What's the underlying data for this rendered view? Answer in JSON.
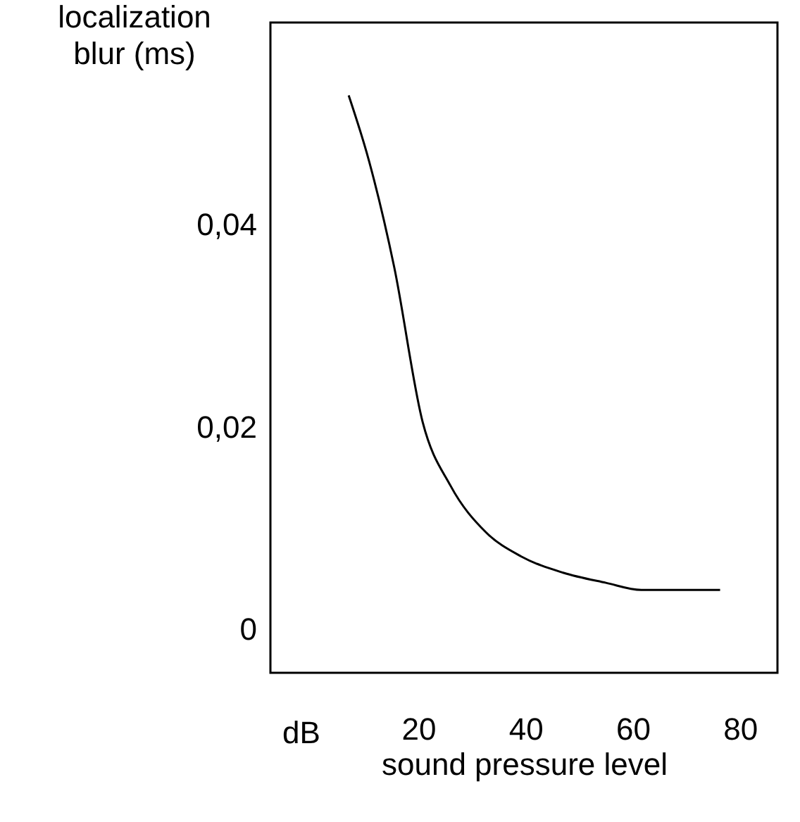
{
  "chart_data": {
    "type": "line",
    "xlabel": "sound pressure level",
    "ylabel": "localization\nblur (ms)",
    "xlim": [
      -7.6,
      87
    ],
    "ylim": [
      -0.0043,
      0.06
    ],
    "xticks": [
      20,
      40,
      60,
      80
    ],
    "annotations": [
      "dB"
    ],
    "yticks": [
      {
        "value": 0,
        "label": "0"
      },
      {
        "value": 0.02,
        "label": "0,02"
      },
      {
        "value": 0.04,
        "label": "0,04"
      }
    ],
    "grid": false,
    "series": [
      {
        "color": "#000000",
        "x": [
          7,
          10.8,
          15.5,
          20.8,
          26,
          32.6,
          39.2,
          47,
          55,
          61.6,
          76.3
        ],
        "values": [
          0.0528,
          0.0463,
          0.0358,
          0.0205,
          0.0142,
          0.0096,
          0.0072,
          0.0056,
          0.0046,
          0.0039,
          0.0039
        ]
      }
    ]
  }
}
